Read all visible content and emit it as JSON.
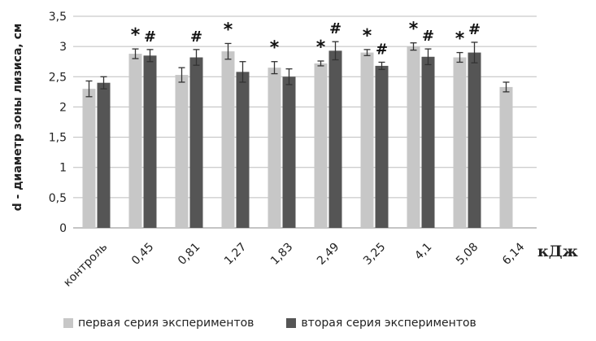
{
  "chart_data": {
    "type": "bar",
    "ylabel": "d - диаметр зоны лизиса, см",
    "xlabel": "кДж",
    "ylim": [
      0,
      3.5
    ],
    "yticks": [
      "0",
      "0,5",
      "1",
      "1,5",
      "2",
      "2,5",
      "3",
      "3,5"
    ],
    "categories": [
      "контроль",
      "0,45",
      "0,81",
      "1,27",
      "1,83",
      "2,49",
      "3,25",
      "4,1",
      "5,08",
      "6,14"
    ],
    "series": [
      {
        "name": "первая серия экспериментов",
        "color": "#c7c7c7",
        "values": [
          2.3,
          2.88,
          2.53,
          2.92,
          2.65,
          2.72,
          2.9,
          3.0,
          2.82,
          2.33
        ],
        "errors": [
          0.13,
          0.08,
          0.12,
          0.13,
          0.1,
          0.04,
          0.05,
          0.06,
          0.08,
          0.08
        ],
        "markers": [
          "",
          "*",
          "",
          "*",
          "*",
          "*",
          "*",
          "*",
          "*",
          ""
        ]
      },
      {
        "name": "вторая серия экспериментов",
        "color": "#555555",
        "values": [
          2.4,
          2.85,
          2.82,
          2.58,
          2.5,
          2.93,
          2.68,
          2.83,
          2.9,
          null
        ],
        "errors": [
          0.1,
          0.1,
          0.13,
          0.17,
          0.13,
          0.15,
          0.06,
          0.13,
          0.17,
          null
        ],
        "markers": [
          "",
          "#",
          "#",
          "",
          "",
          "#",
          "#",
          "#",
          "#",
          ""
        ]
      }
    ],
    "grid": true,
    "legend": "bottom"
  }
}
